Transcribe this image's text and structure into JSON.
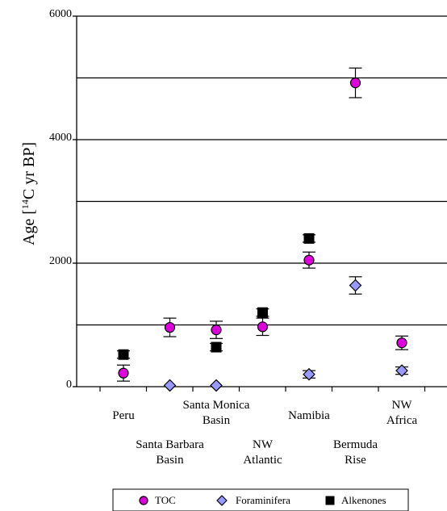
{
  "chart_data": {
    "type": "scatter",
    "title": "",
    "xlabel": "",
    "ylabel_main": "Age [",
    "ylabel_sup": "14",
    "ylabel_tail": "C yr BP]",
    "ylim": [
      0,
      6000
    ],
    "yticks": [
      0,
      2000,
      4000,
      6000
    ],
    "gridlines": [
      1000,
      2000,
      3000,
      4000,
      5000,
      6000
    ],
    "grid": true,
    "categories": [
      {
        "lines": [
          "Peru"
        ],
        "row": "upper"
      },
      {
        "lines": [
          "Santa Barbara",
          "Basin"
        ],
        "row": "lower"
      },
      {
        "lines": [
          "Santa Monica",
          "Basin"
        ],
        "row": "upper"
      },
      {
        "lines": [
          "NW",
          "Atlantic"
        ],
        "row": "lower"
      },
      {
        "lines": [
          "Namibia"
        ],
        "row": "upper"
      },
      {
        "lines": [
          "Bermuda",
          "Rise"
        ],
        "row": "lower"
      },
      {
        "lines": [
          "NW",
          "Africa"
        ],
        "row": "upper"
      }
    ],
    "legend_position": "bottom",
    "series": [
      {
        "name": "TOC",
        "marker": "circle",
        "color": "#dd00dd",
        "points": [
          {
            "cat": 0,
            "y": 220,
            "err": 130
          },
          {
            "cat": 1,
            "y": 960,
            "err": 150
          },
          {
            "cat": 2,
            "y": 920,
            "err": 140
          },
          {
            "cat": 3,
            "y": 970,
            "err": 140
          },
          {
            "cat": 4,
            "y": 2050,
            "err": 130
          },
          {
            "cat": 5,
            "y": 4920,
            "err": 240
          },
          {
            "cat": 6,
            "y": 710,
            "err": 110
          }
        ]
      },
      {
        "name": "Foraminifera",
        "marker": "diamond",
        "color": "#9999ff",
        "points": [
          {
            "cat": 1,
            "y": 20,
            "err": 0
          },
          {
            "cat": 2,
            "y": 20,
            "err": 0
          },
          {
            "cat": 4,
            "y": 200,
            "err": 60
          },
          {
            "cat": 5,
            "y": 1640,
            "err": 140
          },
          {
            "cat": 6,
            "y": 260,
            "err": 60
          }
        ]
      },
      {
        "name": "Alkenones",
        "marker": "square",
        "color": "#000000",
        "points": [
          {
            "cat": 0,
            "y": 520,
            "err": 60
          },
          {
            "cat": 2,
            "y": 640,
            "err": 60
          },
          {
            "cat": 3,
            "y": 1200,
            "err": 60
          },
          {
            "cat": 4,
            "y": 2400,
            "err": 60
          }
        ]
      }
    ]
  }
}
